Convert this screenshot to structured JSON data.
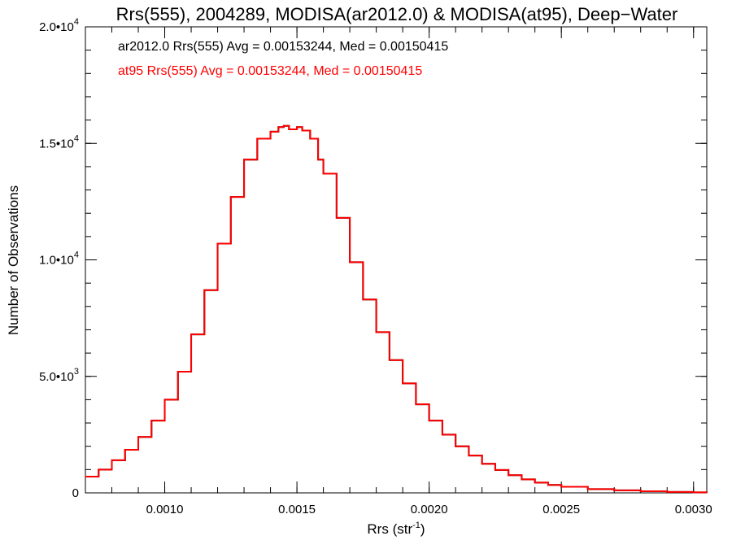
{
  "chart_data": {
    "type": "line",
    "title": "Rrs(555), 2004289, MODISA(ar2012.0) & MODISA(at95), Deep−Water",
    "xlabel": {
      "base": "Rrs (str",
      "sup": "-1",
      "close": ")"
    },
    "ylabel": "Number of Observations",
    "xlim": [
      0.0007,
      0.00305
    ],
    "ylim": [
      0,
      20000
    ],
    "x_ticks": [
      {
        "value": 0.001,
        "label": "0.0010"
      },
      {
        "value": 0.0015,
        "label": "0.0015"
      },
      {
        "value": 0.002,
        "label": "0.0020"
      },
      {
        "value": 0.0025,
        "label": "0.0025"
      },
      {
        "value": 0.003,
        "label": "0.0030"
      }
    ],
    "y_ticks": [
      {
        "value": 0,
        "mant": "0",
        "exp": ""
      },
      {
        "value": 5000,
        "mant": "5.0•10",
        "exp": "3"
      },
      {
        "value": 10000,
        "mant": "1.0•10",
        "exp": "4"
      },
      {
        "value": 15000,
        "mant": "1.5•10",
        "exp": "4"
      },
      {
        "value": 20000,
        "mant": "2.0•10",
        "exp": "4"
      }
    ],
    "x_minor_step": 0.0001,
    "y_minor_step": 1000,
    "annotations": [
      {
        "text": "ar2012.0 Rrs(555) Avg = 0.00153244, Med = 0.00150415",
        "color": "#000000"
      },
      {
        "text": "at95 Rrs(555) Avg = 0.00153244, Med = 0.00150415",
        "color": "#ff0000"
      }
    ],
    "series": [
      {
        "name": "ar2012.0",
        "color": "#000000",
        "x": [
          0.0007,
          0.00075,
          0.0008,
          0.00085,
          0.0009,
          0.00095,
          0.001,
          0.00105,
          0.0011,
          0.00115,
          0.0012,
          0.00125,
          0.0013,
          0.00135,
          0.0014,
          0.00143,
          0.00145,
          0.00147,
          0.0015,
          0.00152,
          0.00155,
          0.00158,
          0.0016,
          0.00165,
          0.0017,
          0.00175,
          0.0018,
          0.00185,
          0.0019,
          0.00195,
          0.002,
          0.00205,
          0.0021,
          0.00215,
          0.0022,
          0.00225,
          0.0023,
          0.00235,
          0.0024,
          0.00245,
          0.0025,
          0.0026,
          0.0027,
          0.0028,
          0.0029,
          0.003,
          0.00305
        ],
        "y": [
          700,
          1000,
          1400,
          1850,
          2400,
          3100,
          4000,
          5200,
          6800,
          8700,
          10700,
          12700,
          14300,
          15200,
          15500,
          15700,
          15750,
          15600,
          15700,
          15550,
          15200,
          14300,
          13700,
          11800,
          9900,
          8300,
          6900,
          5700,
          4700,
          3800,
          3100,
          2500,
          2000,
          1600,
          1250,
          980,
          760,
          580,
          440,
          340,
          260,
          160,
          110,
          70,
          40,
          20,
          15
        ]
      },
      {
        "name": "at95",
        "color": "#ff0000",
        "x": [
          0.0007,
          0.00075,
          0.0008,
          0.00085,
          0.0009,
          0.00095,
          0.001,
          0.00105,
          0.0011,
          0.00115,
          0.0012,
          0.00125,
          0.0013,
          0.00135,
          0.0014,
          0.00143,
          0.00145,
          0.00147,
          0.0015,
          0.00152,
          0.00155,
          0.00158,
          0.0016,
          0.00165,
          0.0017,
          0.00175,
          0.0018,
          0.00185,
          0.0019,
          0.00195,
          0.002,
          0.00205,
          0.0021,
          0.00215,
          0.0022,
          0.00225,
          0.0023,
          0.00235,
          0.0024,
          0.00245,
          0.0025,
          0.0026,
          0.0027,
          0.0028,
          0.0029,
          0.003,
          0.00305
        ],
        "y": [
          700,
          1000,
          1400,
          1850,
          2400,
          3100,
          4000,
          5200,
          6800,
          8700,
          10700,
          12700,
          14300,
          15200,
          15500,
          15700,
          15750,
          15600,
          15700,
          15550,
          15200,
          14300,
          13700,
          11800,
          9900,
          8300,
          6900,
          5700,
          4700,
          3800,
          3100,
          2500,
          2000,
          1600,
          1250,
          980,
          760,
          580,
          440,
          340,
          260,
          160,
          110,
          70,
          40,
          20,
          15
        ]
      }
    ]
  }
}
